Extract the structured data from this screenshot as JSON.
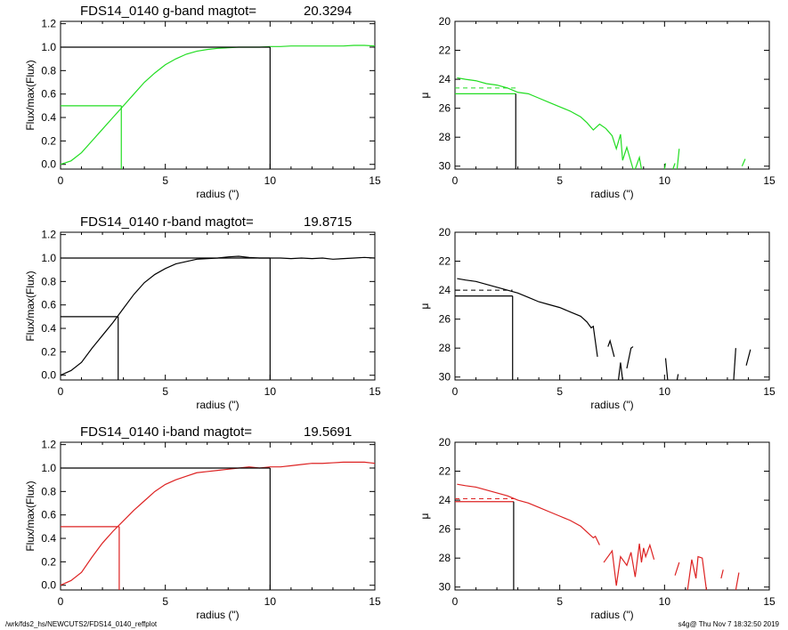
{
  "footer": {
    "left": "/wrk/fds2_hs/NEWCUTS2/FDS14_0140_reffplot",
    "right": "s4g@  Thu Nov  7 18:32:50 2019"
  },
  "chart_data": [
    {
      "type": "line",
      "title": "FDS14_0140 g-band  magtot=",
      "title_value": "20.3294",
      "xlabel": "radius (\")",
      "ylabel": "Flux/max(Flux)",
      "xlim": [
        0,
        15
      ],
      "ylim": [
        -0.04,
        1.22
      ],
      "xticks": [
        "0",
        "5",
        "10",
        "15"
      ],
      "yticks": [
        "0.0",
        "0.2",
        "0.4",
        "0.6",
        "0.8",
        "1.0",
        "1.2"
      ],
      "color": "#22dd22",
      "series": [
        {
          "x": [
            0,
            0.5,
            1,
            1.5,
            2,
            2.5,
            3,
            3.5,
            4,
            4.5,
            5,
            5.5,
            6,
            6.5,
            7,
            7.5,
            8,
            8.5,
            9,
            9.5,
            10,
            10.5,
            11,
            11.5,
            12,
            12.5,
            13,
            13.5,
            14,
            14.5,
            15
          ],
          "y": [
            0.0,
            0.03,
            0.1,
            0.2,
            0.3,
            0.4,
            0.5,
            0.6,
            0.7,
            0.78,
            0.85,
            0.9,
            0.94,
            0.965,
            0.98,
            0.99,
            0.995,
            1.0,
            1.0,
            1.0,
            1.005,
            1.005,
            1.01,
            1.01,
            1.01,
            1.01,
            1.01,
            1.01,
            1.015,
            1.015,
            1.01
          ]
        }
      ],
      "reference": {
        "half_radius": 2.9,
        "half_level": 0.5,
        "total_radius": 10,
        "total_level": 1.0
      }
    },
    {
      "type": "line",
      "xlabel": "radius (\")",
      "ylabel": "μ",
      "xlim": [
        0,
        15
      ],
      "ylim": [
        30.2,
        20
      ],
      "xticks": [
        "0",
        "5",
        "10",
        "15"
      ],
      "yticks": [
        "20",
        "22",
        "24",
        "26",
        "28",
        "30"
      ],
      "color": "#22dd22",
      "series": [
        {
          "segments": [
            [
              [
                0.1,
                23.9
              ],
              [
                0.5,
                24.0
              ],
              [
                1,
                24.1
              ],
              [
                1.5,
                24.3
              ],
              [
                2,
                24.4
              ],
              [
                2.5,
                24.6
              ],
              [
                3,
                24.9
              ],
              [
                3.5,
                25.0
              ],
              [
                4,
                25.3
              ],
              [
                4.5,
                25.6
              ],
              [
                5,
                25.9
              ],
              [
                5.5,
                26.2
              ],
              [
                6,
                26.6
              ],
              [
                6.3,
                27.0
              ],
              [
                6.6,
                27.5
              ],
              [
                6.9,
                27.1
              ],
              [
                7.2,
                27.4
              ],
              [
                7.5,
                27.9
              ],
              [
                7.7,
                28.8
              ],
              [
                7.9,
                27.8
              ],
              [
                8.0,
                29.6
              ],
              [
                8.2,
                28.7
              ],
              [
                8.5,
                30.3
              ]
            ],
            [
              [
                8.6,
                30.3
              ],
              [
                8.8,
                29.4
              ],
              [
                8.9,
                30.3
              ]
            ],
            [
              [
                10,
                30.3
              ],
              [
                10.05,
                29.8
              ]
            ],
            [
              [
                10.4,
                30.3
              ],
              [
                10.5,
                29.8
              ]
            ],
            [
              [
                10.6,
                30.3
              ],
              [
                10.7,
                28.8
              ]
            ],
            [
              [
                13.7,
                30.0
              ],
              [
                13.85,
                29.5
              ]
            ]
          ]
        }
      ],
      "reference": {
        "half_radius": 2.9,
        "mu_half": 25.0,
        "mu_mean": 24.6
      }
    },
    {
      "type": "line",
      "title": "FDS14_0140 r-band  magtot=",
      "title_value": "19.8715",
      "xlabel": "radius (\")",
      "ylabel": "Flux/max(Flux)",
      "xlim": [
        0,
        15
      ],
      "ylim": [
        -0.04,
        1.22
      ],
      "xticks": [
        "0",
        "5",
        "10",
        "15"
      ],
      "yticks": [
        "0.0",
        "0.2",
        "0.4",
        "0.6",
        "0.8",
        "1.0",
        "1.2"
      ],
      "color": "#000000",
      "series": [
        {
          "x": [
            0,
            0.5,
            1,
            1.5,
            2,
            2.5,
            3,
            3.5,
            4,
            4.5,
            5,
            5.5,
            6,
            6.5,
            7,
            7.5,
            8,
            8.5,
            9,
            9.5,
            10,
            10.5,
            11,
            11.5,
            12,
            12.5,
            13,
            13.5,
            14,
            14.5,
            15
          ],
          "y": [
            0.0,
            0.04,
            0.11,
            0.23,
            0.34,
            0.45,
            0.57,
            0.69,
            0.79,
            0.86,
            0.91,
            0.95,
            0.97,
            0.99,
            0.995,
            1.0,
            1.01,
            1.015,
            1.005,
            1.0,
            1.0,
            1.0,
            0.995,
            1.0,
            0.995,
            1.0,
            0.99,
            0.995,
            1.0,
            1.005,
            1.0
          ]
        }
      ],
      "reference": {
        "half_radius": 2.75,
        "half_level": 0.5,
        "total_radius": 10,
        "total_level": 1.0
      }
    },
    {
      "type": "line",
      "xlabel": "radius (\")",
      "ylabel": "μ",
      "xlim": [
        0,
        15
      ],
      "ylim": [
        30.2,
        20
      ],
      "xticks": [
        "0",
        "5",
        "10",
        "15"
      ],
      "yticks": [
        "20",
        "22",
        "24",
        "26",
        "28",
        "30"
      ],
      "color": "#000000",
      "series": [
        {
          "segments": [
            [
              [
                0.1,
                23.2
              ],
              [
                0.5,
                23.3
              ],
              [
                1,
                23.4
              ],
              [
                1.5,
                23.6
              ],
              [
                2,
                23.8
              ],
              [
                2.5,
                24.0
              ],
              [
                3,
                24.2
              ],
              [
                3.5,
                24.5
              ],
              [
                4,
                24.8
              ],
              [
                4.5,
                25.0
              ],
              [
                5,
                25.2
              ],
              [
                5.5,
                25.5
              ],
              [
                6,
                25.8
              ],
              [
                6.3,
                26.2
              ],
              [
                6.5,
                26.6
              ],
              [
                6.6,
                26.5
              ],
              [
                6.8,
                28.6
              ]
            ],
            [
              [
                7.3,
                27.9
              ],
              [
                7.4,
                27.5
              ],
              [
                7.6,
                28.6
              ]
            ],
            [
              [
                7.8,
                30.3
              ],
              [
                7.9,
                29.0
              ],
              [
                8.0,
                30.3
              ]
            ],
            [
              [
                8.2,
                29.4
              ],
              [
                8.4,
                28.0
              ],
              [
                8.5,
                27.9
              ]
            ],
            [
              [
                10.05,
                28.7
              ],
              [
                10.15,
                30.3
              ]
            ],
            [
              [
                10.6,
                30.3
              ],
              [
                10.65,
                29.8
              ]
            ],
            [
              [
                13.3,
                30.3
              ],
              [
                13.4,
                28.0
              ]
            ],
            [
              [
                13.9,
                29.2
              ],
              [
                14.1,
                28.1
              ]
            ]
          ]
        }
      ],
      "reference": {
        "half_radius": 2.75,
        "mu_half": 24.4,
        "mu_mean": 24.0
      }
    },
    {
      "type": "line",
      "title": "FDS14_0140 i-band  magtot=",
      "title_value": "19.5691",
      "xlabel": "radius (\")",
      "ylabel": "Flux/max(Flux)",
      "xlim": [
        0,
        15
      ],
      "ylim": [
        -0.04,
        1.22
      ],
      "xticks": [
        "0",
        "5",
        "10",
        "15"
      ],
      "yticks": [
        "0.0",
        "0.2",
        "0.4",
        "0.6",
        "0.8",
        "1.0",
        "1.2"
      ],
      "color": "#dd2222",
      "series": [
        {
          "x": [
            0,
            0.5,
            1,
            1.5,
            2,
            2.5,
            3,
            3.5,
            4,
            4.5,
            5,
            5.5,
            6,
            6.5,
            7,
            7.5,
            8,
            8.5,
            9,
            9.5,
            10,
            10.5,
            11,
            11.5,
            12,
            12.5,
            13,
            13.5,
            14,
            14.5,
            15
          ],
          "y": [
            0.0,
            0.04,
            0.11,
            0.24,
            0.36,
            0.46,
            0.55,
            0.64,
            0.72,
            0.8,
            0.86,
            0.9,
            0.93,
            0.96,
            0.97,
            0.98,
            0.99,
            1.0,
            1.01,
            1.0,
            1.01,
            1.01,
            1.02,
            1.03,
            1.04,
            1.04,
            1.045,
            1.05,
            1.05,
            1.05,
            1.04
          ]
        }
      ],
      "reference": {
        "half_radius": 2.8,
        "half_level": 0.5,
        "total_radius": 10,
        "total_level": 1.0
      }
    },
    {
      "type": "line",
      "xlabel": "radius (\")",
      "ylabel": "μ",
      "xlim": [
        0,
        15
      ],
      "ylim": [
        30.2,
        20
      ],
      "xticks": [
        "0",
        "5",
        "10",
        "15"
      ],
      "yticks": [
        "20",
        "22",
        "24",
        "26",
        "28",
        "30"
      ],
      "color": "#dd2222",
      "series": [
        {
          "segments": [
            [
              [
                0.1,
                22.9
              ],
              [
                0.5,
                23.0
              ],
              [
                1,
                23.1
              ],
              [
                1.5,
                23.3
              ],
              [
                2,
                23.5
              ],
              [
                2.5,
                23.7
              ],
              [
                3,
                24.0
              ],
              [
                3.5,
                24.2
              ],
              [
                4,
                24.5
              ],
              [
                4.5,
                24.8
              ],
              [
                5,
                25.1
              ],
              [
                5.5,
                25.4
              ],
              [
                6,
                25.8
              ],
              [
                6.3,
                26.2
              ],
              [
                6.6,
                26.6
              ],
              [
                6.7,
                26.5
              ],
              [
                6.9,
                27.1
              ]
            ],
            [
              [
                7.1,
                28.3
              ],
              [
                7.5,
                27.5
              ],
              [
                7.7,
                29.9
              ],
              [
                7.9,
                27.9
              ],
              [
                8.2,
                28.5
              ],
              [
                8.4,
                27.6
              ],
              [
                8.6,
                29.3
              ],
              [
                8.8,
                27.0
              ],
              [
                8.9,
                28.3
              ],
              [
                9.0,
                27.3
              ],
              [
                9.1,
                27.9
              ],
              [
                9.3,
                27.1
              ],
              [
                9.5,
                28.1
              ]
            ],
            [
              [
                10.5,
                29.2
              ],
              [
                10.7,
                28.3
              ]
            ],
            [
              [
                11.1,
                30.3
              ],
              [
                11.3,
                28.1
              ],
              [
                11.5,
                29.4
              ],
              [
                11.6,
                27.9
              ],
              [
                11.8,
                28.0
              ],
              [
                12.0,
                30.3
              ]
            ],
            [
              [
                12.7,
                29.4
              ],
              [
                12.8,
                28.8
              ]
            ],
            [
              [
                13.4,
                30.3
              ],
              [
                13.55,
                29.0
              ]
            ]
          ]
        }
      ],
      "reference": {
        "half_radius": 2.8,
        "mu_half": 24.1,
        "mu_mean": 23.9
      }
    }
  ]
}
